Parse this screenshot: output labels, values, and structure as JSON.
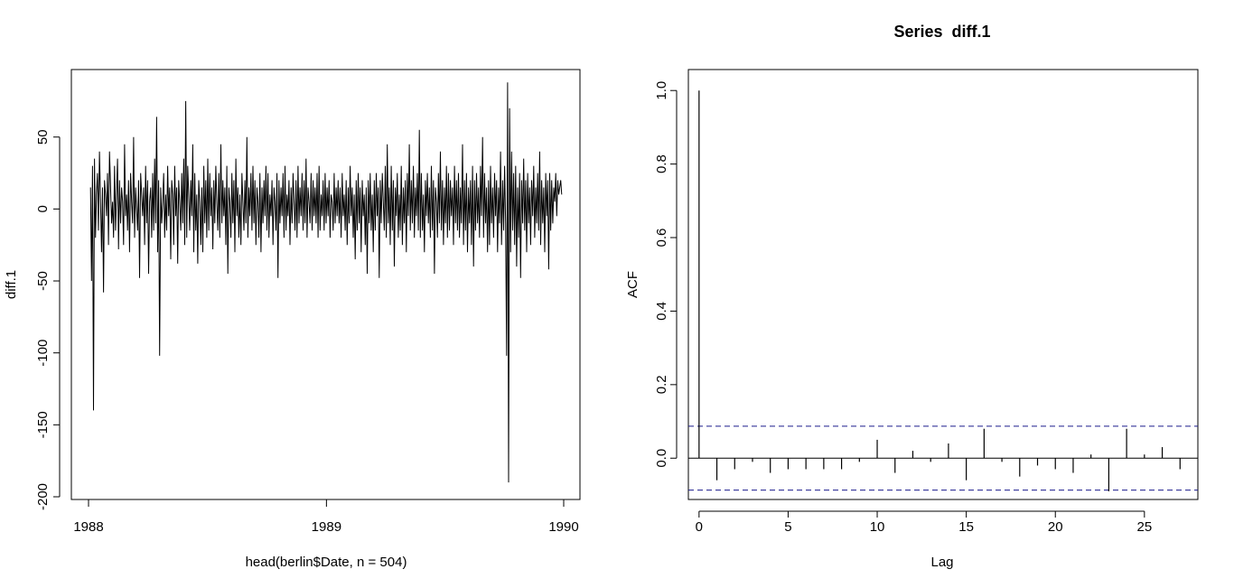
{
  "chart_data": [
    {
      "type": "line",
      "title": "",
      "xlabel": "head(berlin$Date, n = 504)",
      "ylabel": "diff.1",
      "x_ticks": [
        "1988",
        "1989",
        "1990"
      ],
      "y_ticks": [
        50,
        0,
        -50,
        -100,
        -150,
        -200
      ],
      "xlim": [
        "1988-01-01",
        "1990-01-01"
      ],
      "ylim": [
        -200,
        90
      ],
      "x_start": "1988-01-04",
      "x_end": "1989-12-29",
      "series": [
        {
          "values": [
            15,
            -50,
            30,
            -140,
            35,
            -20,
            10,
            25,
            -15,
            40,
            5,
            -30,
            15,
            -58,
            20,
            10,
            -5,
            25,
            -25,
            40,
            15,
            -10,
            5,
            -20,
            30,
            -15,
            10,
            35,
            -28,
            20,
            -10,
            15,
            5,
            -25,
            45,
            -5,
            10,
            -15,
            20,
            -30,
            25,
            5,
            -10,
            50,
            -20,
            15,
            0,
            -15,
            20,
            -48,
            25,
            10,
            -5,
            15,
            -25,
            30,
            -10,
            20,
            -45,
            5,
            15,
            -20,
            25,
            -15,
            35,
            -10,
            64,
            -30,
            20,
            -102,
            15,
            -10,
            5,
            25,
            -20,
            10,
            -15,
            30,
            -5,
            15,
            -35,
            20,
            10,
            -25,
            30,
            -5,
            15,
            -38,
            20,
            5,
            -15,
            25,
            -10,
            35,
            -25,
            75,
            -20,
            30,
            10,
            -15,
            20,
            -5,
            45,
            -30,
            25,
            -15,
            10,
            -38,
            20,
            5,
            -25,
            15,
            -30,
            30,
            -10,
            20,
            -20,
            35,
            -15,
            25,
            -5,
            15,
            -28,
            20,
            -10,
            30,
            5,
            -15,
            25,
            -20,
            45,
            -10,
            20,
            -5,
            15,
            -25,
            30,
            -45,
            15,
            5,
            -20,
            25,
            -10,
            20,
            -30,
            35,
            -5,
            15,
            -20,
            10,
            -25,
            25,
            5,
            -15,
            20,
            -10,
            50,
            -20,
            15,
            -5,
            25,
            -15,
            30,
            -10,
            20,
            -25,
            15,
            5,
            -20,
            25,
            -30,
            15,
            -10,
            20,
            -5,
            30,
            -15,
            25,
            -20,
            10,
            -5,
            20,
            -25,
            15,
            5,
            -15,
            25,
            -48,
            20,
            -10,
            15,
            -5,
            25,
            -20,
            30,
            -15,
            10,
            -5,
            20,
            -25,
            15,
            -10,
            25,
            5,
            -15,
            20,
            -20,
            30,
            -10,
            15,
            -5,
            25,
            -15,
            20,
            -10,
            35,
            -20,
            15,
            5,
            -10,
            25,
            -15,
            20,
            -5,
            15,
            -10,
            25,
            -20,
            30,
            -15,
            10,
            -5,
            20,
            -15,
            25,
            -10,
            15,
            -5,
            20,
            -20,
            10,
            5,
            -15,
            25,
            -10,
            15,
            -5,
            20,
            -10,
            15,
            -20,
            25,
            -5,
            10,
            -15,
            20,
            -25,
            15,
            -10,
            30,
            -5,
            15,
            -20,
            10,
            -35,
            20,
            -15,
            25,
            -10,
            15,
            -30,
            20,
            -5,
            10,
            -25,
            15,
            -45,
            20,
            -10,
            25,
            -15,
            10,
            -30,
            20,
            -15,
            25,
            -5,
            15,
            -48,
            20,
            -10,
            25,
            5,
            -15,
            30,
            -20,
            45,
            -10,
            15,
            -25,
            30,
            -15,
            20,
            -40,
            15,
            -5,
            25,
            -20,
            10,
            -15,
            30,
            -25,
            15,
            -10,
            20,
            -30,
            25,
            -5,
            45,
            -15,
            20,
            -10,
            30,
            -20,
            15,
            -5,
            25,
            -15,
            55,
            -20,
            25,
            -15,
            10,
            -30,
            20,
            -5,
            25,
            -10,
            15,
            -20,
            30,
            -15,
            20,
            -45,
            15,
            5,
            -20,
            25,
            -10,
            40,
            -15,
            20,
            -25,
            15,
            -10,
            30,
            -20,
            25,
            -15,
            20,
            -5,
            15,
            -25,
            30,
            -10,
            20,
            -15,
            25,
            -20,
            15,
            -10,
            45,
            -25,
            20,
            -15,
            25,
            -30,
            15,
            -10,
            20,
            -25,
            30,
            -40,
            20,
            -15,
            25,
            -10,
            15,
            -20,
            30,
            -5,
            50,
            -20,
            25,
            -10,
            15,
            -30,
            20,
            -25,
            30,
            -10,
            15,
            -20,
            25,
            -5,
            20,
            -30,
            15,
            -10,
            40,
            -25,
            20,
            -15,
            30,
            -10,
            -102,
            88,
            -190,
            70,
            -30,
            40,
            -15,
            25,
            -25,
            30,
            -40,
            15,
            -20,
            25,
            -48,
            20,
            -10,
            35,
            -15,
            20,
            -30,
            25,
            -10,
            15,
            -25,
            20,
            -5,
            30,
            -20,
            15,
            -10,
            25,
            -15,
            40,
            -25,
            20,
            -10,
            15,
            -30,
            25,
            -5,
            20,
            -42,
            25,
            -15,
            20,
            -10,
            15,
            5,
            25,
            -5,
            20,
            10,
            15,
            20,
            10
          ],
          "color": "#000000"
        }
      ]
    },
    {
      "type": "bar",
      "title": "Series  diff.1",
      "xlabel": "Lag",
      "ylabel": "ACF",
      "x_ticks": [
        0,
        5,
        10,
        15,
        20,
        25
      ],
      "y_ticks": [
        "0.0",
        "0.2",
        "0.4",
        "0.6",
        "0.8",
        "1.0"
      ],
      "xlim": [
        -0.6,
        28
      ],
      "ylim": [
        -0.105,
        1.03
      ],
      "lags": [
        0,
        1,
        2,
        3,
        4,
        5,
        6,
        7,
        8,
        9,
        10,
        11,
        12,
        13,
        14,
        15,
        16,
        17,
        18,
        19,
        20,
        21,
        22,
        23,
        24,
        25,
        26,
        27
      ],
      "values": [
        1.0,
        -0.06,
        -0.03,
        -0.01,
        -0.04,
        -0.03,
        -0.03,
        -0.03,
        -0.03,
        -0.01,
        0.05,
        -0.04,
        0.02,
        -0.01,
        0.04,
        -0.06,
        0.08,
        -0.01,
        -0.05,
        -0.02,
        -0.03,
        -0.04,
        0.01,
        -0.09,
        0.08,
        0.01,
        0.03,
        -0.03
      ],
      "confidence_bound": 0.087,
      "bound_color": "#1a1a8c"
    }
  ]
}
